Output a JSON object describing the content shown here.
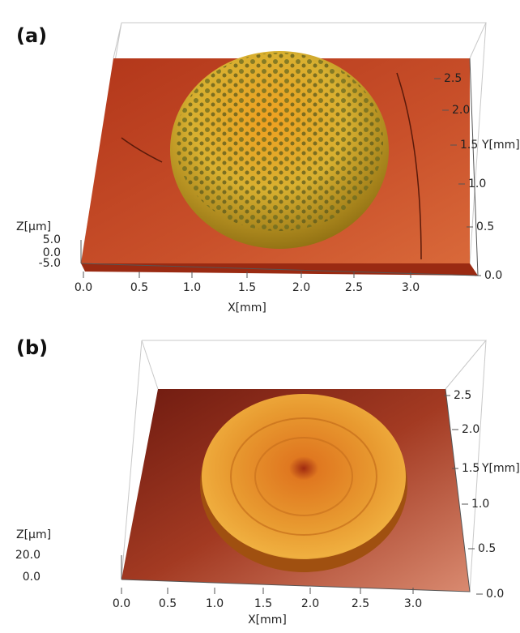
{
  "panels": [
    {
      "label": "(a)",
      "x_axis_title": "X[mm]",
      "x_ticks": [
        "0.0",
        "0.5",
        "1.0",
        "1.5",
        "2.0",
        "2.5",
        "3.0"
      ],
      "y_axis_title": "Y[mm]",
      "y_ticks": [
        "0.0",
        "0.5",
        "1.0",
        "1.5",
        "2.0",
        "2.5"
      ],
      "z_axis_title": "Z[µm]",
      "z_ticks": [
        "-5.0",
        "0.0",
        "5.0"
      ]
    },
    {
      "label": "(b)",
      "x_axis_title": "X[mm]",
      "x_ticks": [
        "0.0",
        "0.5",
        "1.0",
        "1.5",
        "2.0",
        "2.5",
        "3.0"
      ],
      "y_axis_title": "Y[mm]",
      "y_ticks": [
        "0.0",
        "0.5",
        "1.0",
        "1.5",
        "2.0",
        "2.5"
      ],
      "z_axis_title": "Z[µm]",
      "z_ticks": [
        "0.0",
        "20.0"
      ]
    }
  ]
}
